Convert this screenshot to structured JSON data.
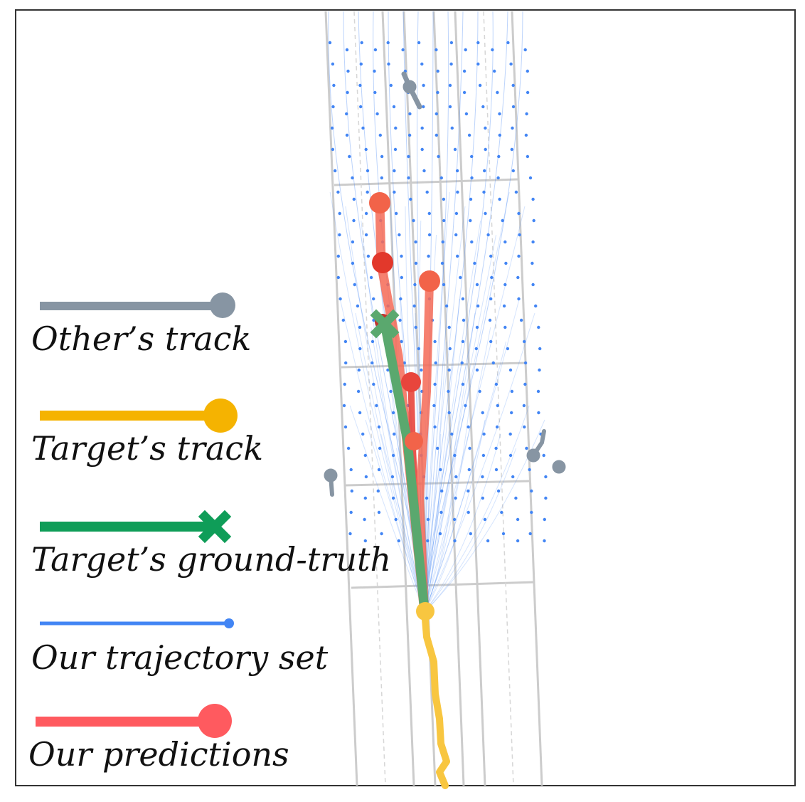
{
  "legend": {
    "others_track": "Other’s track",
    "target_track": "Target’s track",
    "target_ground_truth": "Target’s ground-truth",
    "trajectory_set": "Our trajectory set",
    "predictions": "Our predictions"
  },
  "colors": {
    "others_track": "#8795a3",
    "target_track": "#f5b301",
    "ground_truth": "#0f9d58",
    "trajectory_set": "#4285f4",
    "predictions": "#ff5a5f",
    "road_lines": "#cccccc",
    "frame": "#333333"
  },
  "icons": [
    "circle-marker",
    "x-marker"
  ]
}
